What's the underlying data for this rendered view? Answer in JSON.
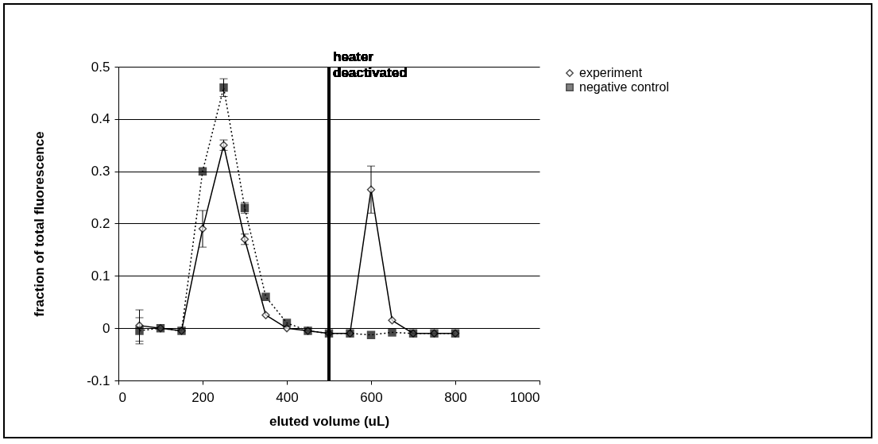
{
  "chart_data": {
    "type": "line",
    "xlabel": "eluted volume (uL)",
    "ylabel": "fraction of total fluorescence",
    "x": [
      50,
      100,
      150,
      200,
      250,
      300,
      350,
      400,
      450,
      500,
      550,
      600,
      650,
      700,
      750,
      800
    ],
    "series": [
      {
        "name": "experiment",
        "color": "#000000",
        "marker": "diamond",
        "line_style": "solid",
        "values": [
          0.005,
          0,
          -0.005,
          0.19,
          0.35,
          0.17,
          0.025,
          0,
          -0.005,
          -0.01,
          -0.01,
          0.265,
          0.015,
          -0.01,
          -0.01,
          -0.01
        ],
        "errors": [
          0.03,
          null,
          null,
          0.035,
          0.01,
          0.01,
          null,
          null,
          null,
          null,
          null,
          0.045,
          null,
          null,
          null,
          null
        ]
      },
      {
        "name": "negative control",
        "color": "#000000",
        "marker": "square",
        "line_style": "dotted",
        "values": [
          -0.005,
          0,
          -0.005,
          0.3,
          0.46,
          0.23,
          0.06,
          0.01,
          -0.005,
          -0.01,
          -0.01,
          -0.013,
          -0.008,
          -0.01,
          -0.01,
          -0.01
        ],
        "errors": [
          0.025,
          null,
          null,
          null,
          0.017,
          0.01,
          null,
          null,
          null,
          null,
          null,
          null,
          null,
          null,
          null,
          null
        ]
      }
    ],
    "xlim": [
      0,
      1000
    ],
    "xticks": [
      0,
      200,
      400,
      600,
      800,
      1000
    ],
    "ylim": [
      -0.1,
      0.5
    ],
    "yticks": [
      -0.1,
      0,
      0.1,
      0.2,
      0.3,
      0.4,
      0.5
    ],
    "grid": "y",
    "legend": "right",
    "ref_lines": [
      {
        "axis": "x",
        "value": 500,
        "label": "heater deactivated",
        "color": "#000000"
      }
    ]
  }
}
